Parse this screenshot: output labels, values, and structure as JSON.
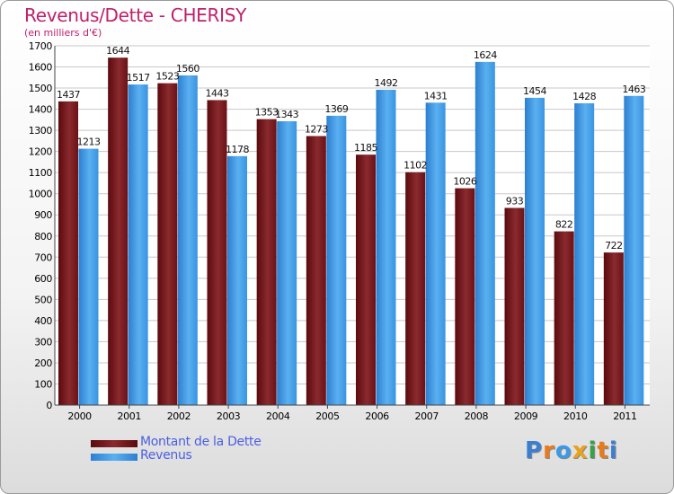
{
  "header": {
    "title": "Revenus/Dette - CHERISY",
    "subtitle": "(en milliers d'€)"
  },
  "legend": {
    "items": [
      {
        "label": "Montant de la Dette",
        "color": "#6b0a10"
      },
      {
        "label": "Revenus",
        "color": "#3a9ae6"
      }
    ]
  },
  "logo": {
    "text": "Proxiti",
    "letters": [
      "P",
      "r",
      "o",
      "x",
      "i",
      "t",
      "i"
    ],
    "colors": [
      "#3a7fd0",
      "#e87a1e",
      "#3a9ae6",
      "#e8a21e",
      "#3aa04a",
      "#e87a1e",
      "#3a7fd0"
    ]
  },
  "chart_data": {
    "type": "bar",
    "title": "Revenus/Dette - CHERISY",
    "subtitle": "(en milliers d'€)",
    "categories": [
      "2000",
      "2001",
      "2002",
      "2003",
      "2004",
      "2005",
      "2006",
      "2007",
      "2008",
      "2009",
      "2010",
      "2011"
    ],
    "series": [
      {
        "name": "Montant de la Dette",
        "color": "#7a1a1e",
        "values": [
          1437,
          1644,
          1523,
          1443,
          1353,
          1273,
          1185,
          1102,
          1026,
          933,
          822,
          722
        ]
      },
      {
        "name": "Revenus",
        "color": "#3a9ae6",
        "values": [
          1213,
          1517,
          1560,
          1178,
          1343,
          1369,
          1492,
          1431,
          1624,
          1454,
          1428,
          1463
        ]
      }
    ],
    "ylim": [
      0,
      1700
    ],
    "yticks": [
      0,
      100,
      200,
      300,
      400,
      500,
      600,
      700,
      800,
      900,
      1000,
      1100,
      1200,
      1300,
      1400,
      1500,
      1600,
      1700
    ],
    "grid": true,
    "legend_position": "bottom-left"
  }
}
